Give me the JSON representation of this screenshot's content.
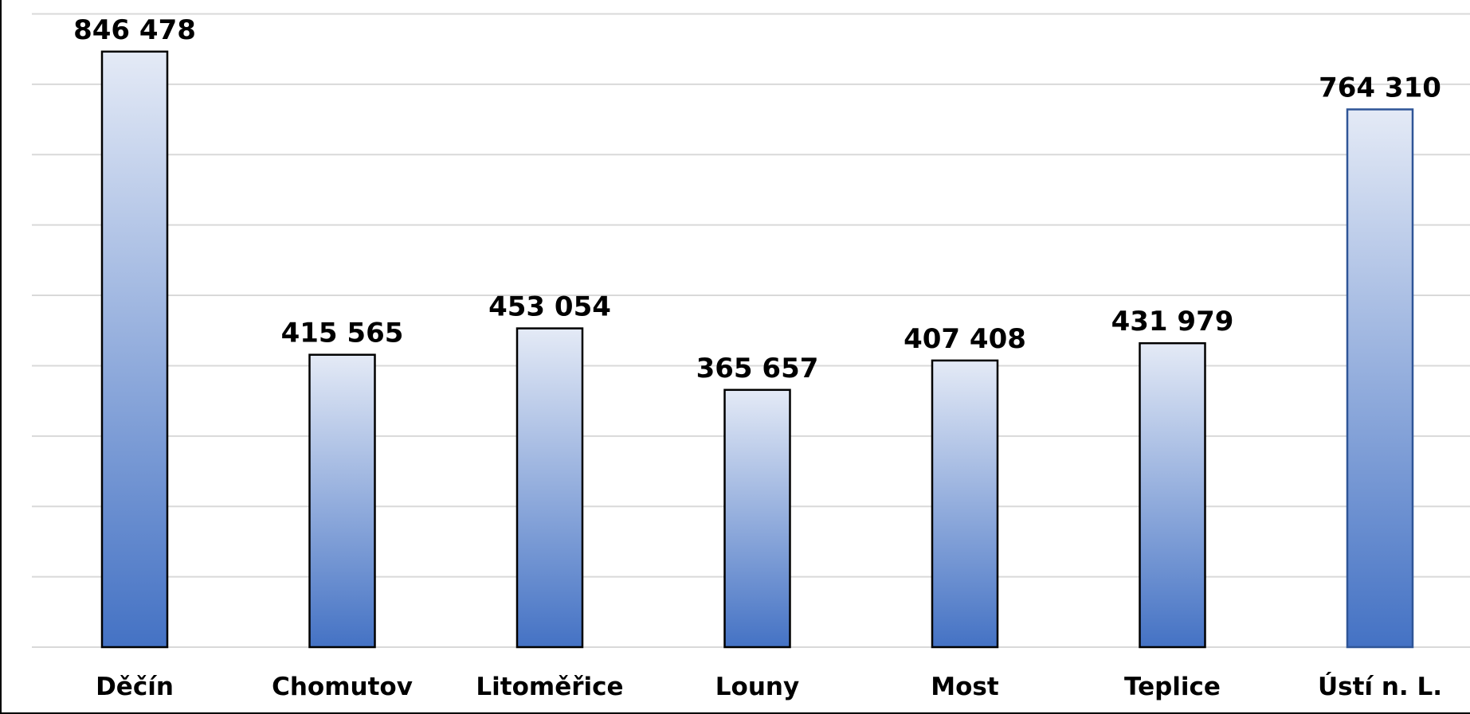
{
  "chart_data": {
    "type": "bar",
    "title": "",
    "xlabel": "",
    "ylabel": "",
    "categories": [
      "Děčín",
      "Chomutov",
      "Litoměřice",
      "Louny",
      "Most",
      "Teplice",
      "Ústí n. L."
    ],
    "values": [
      846478,
      415565,
      453054,
      365657,
      407408,
      431979,
      764310
    ],
    "value_labels": [
      "846 478",
      "415 565",
      "453 054",
      "365 657",
      "407 408",
      "431 979",
      "764 310"
    ],
    "ylim": [
      0,
      900000
    ],
    "y_gridline_step": 100000,
    "y_tick_labels_visible": false,
    "grid": true,
    "legend": "none",
    "colors": {
      "bar_gradient_top": "#e4eaf6",
      "bar_gradient_bottom": "#4472c4",
      "bar_outline": "#000000",
      "bar_outline_last": "#2f5597",
      "gridline": "#d9d9d9",
      "text": "#000000"
    }
  }
}
